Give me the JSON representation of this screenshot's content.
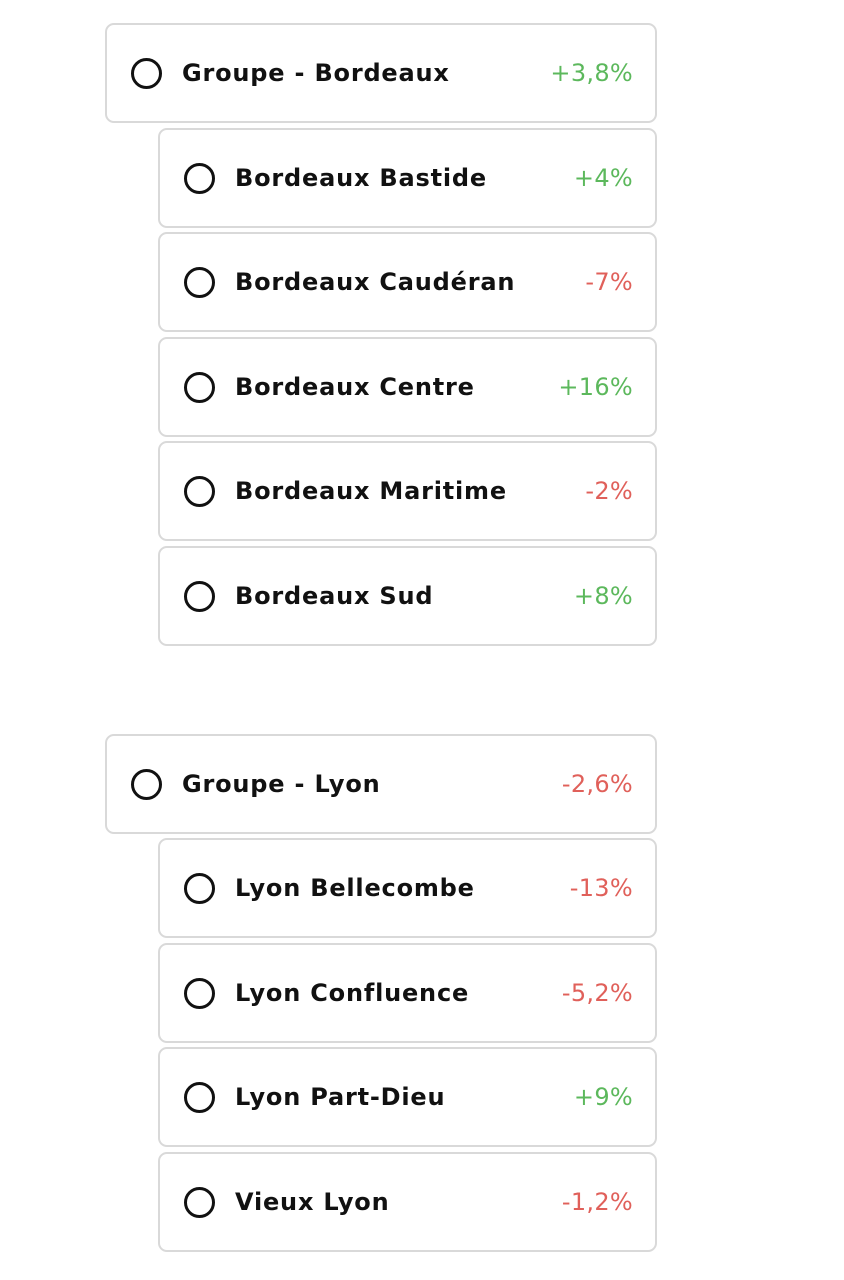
{
  "colors": {
    "positive": "#5cb85c",
    "negative": "#e0605a",
    "border": "#d9d9d9",
    "text": "#111111"
  },
  "groups": [
    {
      "name": "Groupe - Bordeaux",
      "change": "+3,8%",
      "trend": "positive",
      "selected": false,
      "locations": [
        {
          "name": "Bordeaux Bastide",
          "change": "+4%",
          "trend": "positive",
          "selected": false
        },
        {
          "name": "Bordeaux Caudéran",
          "change": "-7%",
          "trend": "negative",
          "selected": false
        },
        {
          "name": "Bordeaux Centre",
          "change": "+16%",
          "trend": "positive",
          "selected": false
        },
        {
          "name": "Bordeaux Maritime",
          "change": "-2%",
          "trend": "negative",
          "selected": false
        },
        {
          "name": "Bordeaux Sud",
          "change": "+8%",
          "trend": "positive",
          "selected": false
        }
      ]
    },
    {
      "name": "Groupe - Lyon",
      "change": "-2,6%",
      "trend": "negative",
      "selected": false,
      "locations": [
        {
          "name": "Lyon Bellecombe",
          "change": "-13%",
          "trend": "negative",
          "selected": false
        },
        {
          "name": "Lyon Confluence",
          "change": "-5,2%",
          "trend": "negative",
          "selected": false
        },
        {
          "name": "Lyon Part-Dieu",
          "change": "+9%",
          "trend": "positive",
          "selected": false
        },
        {
          "name": "Vieux Lyon",
          "change": "-1,2%",
          "trend": "negative",
          "selected": false
        }
      ]
    }
  ]
}
